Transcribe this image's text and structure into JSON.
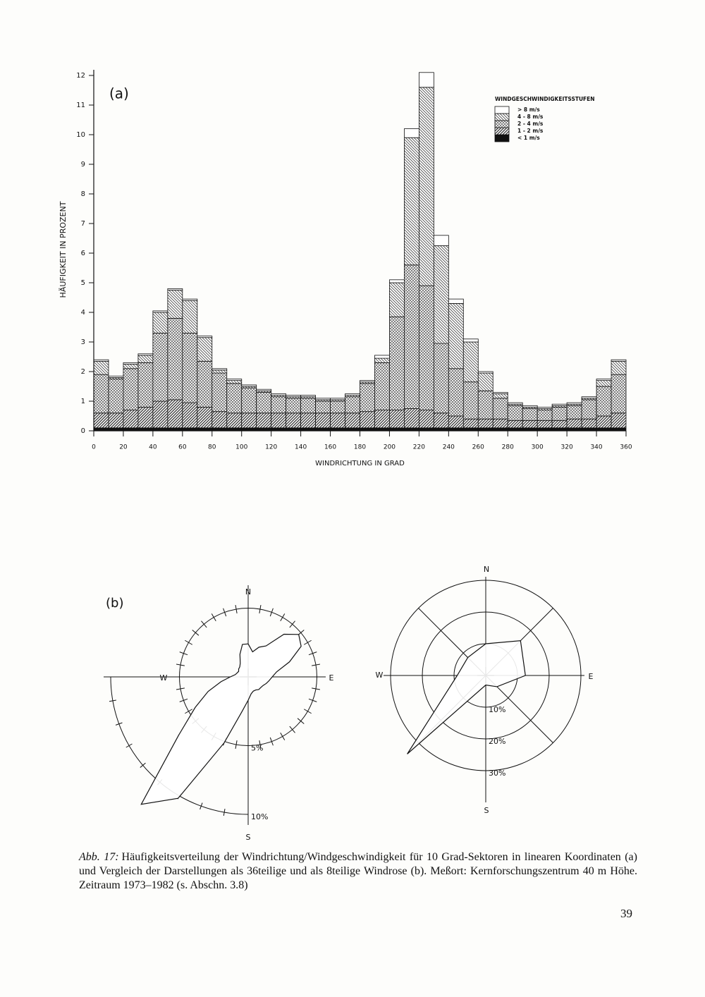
{
  "chart_data": [
    {
      "type": "histogram",
      "annotation": "(a)",
      "xlabel": "WINDRICHTUNG IN GRAD",
      "ylabel": "HÄUFIGKEIT IN PROZENT",
      "legend_title": "WINDGESCHWINDIGKEITSSTUFEN",
      "legend": "top-right",
      "bins": [
        0,
        10,
        20,
        30,
        40,
        50,
        60,
        70,
        80,
        90,
        100,
        110,
        120,
        130,
        140,
        150,
        160,
        170,
        180,
        190,
        200,
        210,
        220,
        230,
        240,
        250,
        260,
        270,
        280,
        290,
        300,
        310,
        320,
        330,
        340,
        350,
        360
      ],
      "series": [
        {
          "name": "< 1 m/s",
          "color": "#111111",
          "hatch": "solid",
          "values": [
            0.1,
            0.1,
            0.1,
            0.1,
            0.1,
            0.1,
            0.1,
            0.1,
            0.1,
            0.1,
            0.1,
            0.1,
            0.1,
            0.1,
            0.1,
            0.1,
            0.1,
            0.1,
            0.1,
            0.1,
            0.1,
            0.1,
            0.1,
            0.1,
            0.1,
            0.1,
            0.1,
            0.1,
            0.1,
            0.1,
            0.1,
            0.1,
            0.1,
            0.1,
            0.1,
            0.1
          ]
        },
        {
          "name": "1 - 2 m/s",
          "color": "#333333",
          "hatch": "/",
          "values": [
            0.5,
            0.5,
            0.6,
            0.7,
            0.9,
            0.95,
            0.85,
            0.7,
            0.55,
            0.5,
            0.5,
            0.5,
            0.5,
            0.5,
            0.5,
            0.5,
            0.5,
            0.5,
            0.55,
            0.6,
            0.6,
            0.65,
            0.6,
            0.5,
            0.4,
            0.3,
            0.3,
            0.3,
            0.25,
            0.25,
            0.25,
            0.25,
            0.3,
            0.3,
            0.4,
            0.5
          ]
        },
        {
          "name": "2 - 4 m/s",
          "color": "#555555",
          "hatch": "x",
          "values": [
            1.3,
            1.15,
            1.4,
            1.5,
            2.3,
            2.75,
            2.35,
            1.55,
            1.3,
            1.0,
            0.85,
            0.7,
            0.55,
            0.5,
            0.5,
            0.4,
            0.4,
            0.55,
            0.95,
            1.6,
            3.15,
            4.85,
            4.2,
            2.35,
            1.6,
            1.25,
            0.95,
            0.7,
            0.5,
            0.4,
            0.35,
            0.45,
            0.45,
            0.65,
            1.0,
            1.3
          ]
        },
        {
          "name": "4 - 8 m/s",
          "color": "#444444",
          "hatch": "\\",
          "values": [
            0.45,
            0.05,
            0.15,
            0.25,
            0.7,
            0.95,
            1.1,
            0.8,
            0.1,
            0.1,
            0.05,
            0.05,
            0.05,
            0.05,
            0.05,
            0.05,
            0.05,
            0.05,
            0.05,
            0.15,
            1.15,
            4.3,
            6.7,
            3.3,
            2.2,
            1.35,
            0.6,
            0.15,
            0.05,
            0.05,
            0.05,
            0.05,
            0.05,
            0.05,
            0.2,
            0.45
          ]
        },
        {
          "name": "> 8 m/s",
          "color": "#ffffff",
          "hatch": "none",
          "values": [
            0.05,
            0.05,
            0.05,
            0.05,
            0.05,
            0.05,
            0.05,
            0.05,
            0.05,
            0.05,
            0.05,
            0.05,
            0.05,
            0.05,
            0.05,
            0.05,
            0.05,
            0.05,
            0.05,
            0.1,
            0.1,
            0.3,
            0.5,
            0.35,
            0.15,
            0.1,
            0.05,
            0.05,
            0.05,
            0.05,
            0.05,
            0.05,
            0.05,
            0.05,
            0.05,
            0.05
          ]
        }
      ],
      "xlim": [
        0,
        360
      ],
      "xticks": [
        0,
        20,
        40,
        60,
        80,
        100,
        120,
        140,
        160,
        180,
        200,
        220,
        240,
        260,
        280,
        300,
        320,
        340,
        360
      ],
      "ylim": [
        0,
        12
      ],
      "yticks": [
        0,
        1,
        2,
        3,
        4,
        5,
        6,
        7,
        8,
        9,
        10,
        11,
        12
      ]
    },
    {
      "type": "windrose",
      "annotation": "(b)",
      "directions": [
        "N",
        "E",
        "S",
        "W"
      ],
      "values": [
        2.4,
        1.85,
        2.3,
        2.6,
        4.05,
        4.8,
        4.45,
        3.2,
        2.1,
        1.75,
        1.55,
        1.4,
        1.25,
        1.2,
        1.2,
        1.1,
        1.1,
        1.25,
        1.7,
        2.55,
        5.1,
        10.2,
        12.1,
        6.6,
        4.45,
        3.1,
        2.0,
        1.3,
        0.95,
        0.85,
        0.8,
        0.9,
        0.95,
        1.15,
        1.75,
        2.4
      ],
      "rlim": [
        0,
        10
      ],
      "rticks": [
        {
          "value": 5,
          "label": "5%"
        },
        {
          "value": 10,
          "label": "10%"
        }
      ]
    },
    {
      "type": "windrose",
      "directions": [
        "N",
        "E",
        "S",
        "W"
      ],
      "values": [
        10,
        15.5,
        12.5,
        5,
        3,
        35,
        9,
        8
      ],
      "rlim": [
        0,
        30
      ],
      "rticks": [
        {
          "value": 10,
          "label": "10%"
        },
        {
          "value": 20,
          "label": "20%"
        },
        {
          "value": 30,
          "label": "30%"
        }
      ]
    }
  ],
  "caption": {
    "label": "Abb. 17:",
    "text": "Häufigkeitsverteilung der Windrichtung/Windgeschwindigkeit für 10 Grad-Sektoren in linearen Koordinaten (a) und Vergleich der Darstellungen als 36teilige und als 8teilige Windrose (b). Meßort: Kernforschungszentrum 40 m Höhe. Zeitraum 1973–1982 (s. Abschn. 3.8)"
  },
  "page_number": "39"
}
